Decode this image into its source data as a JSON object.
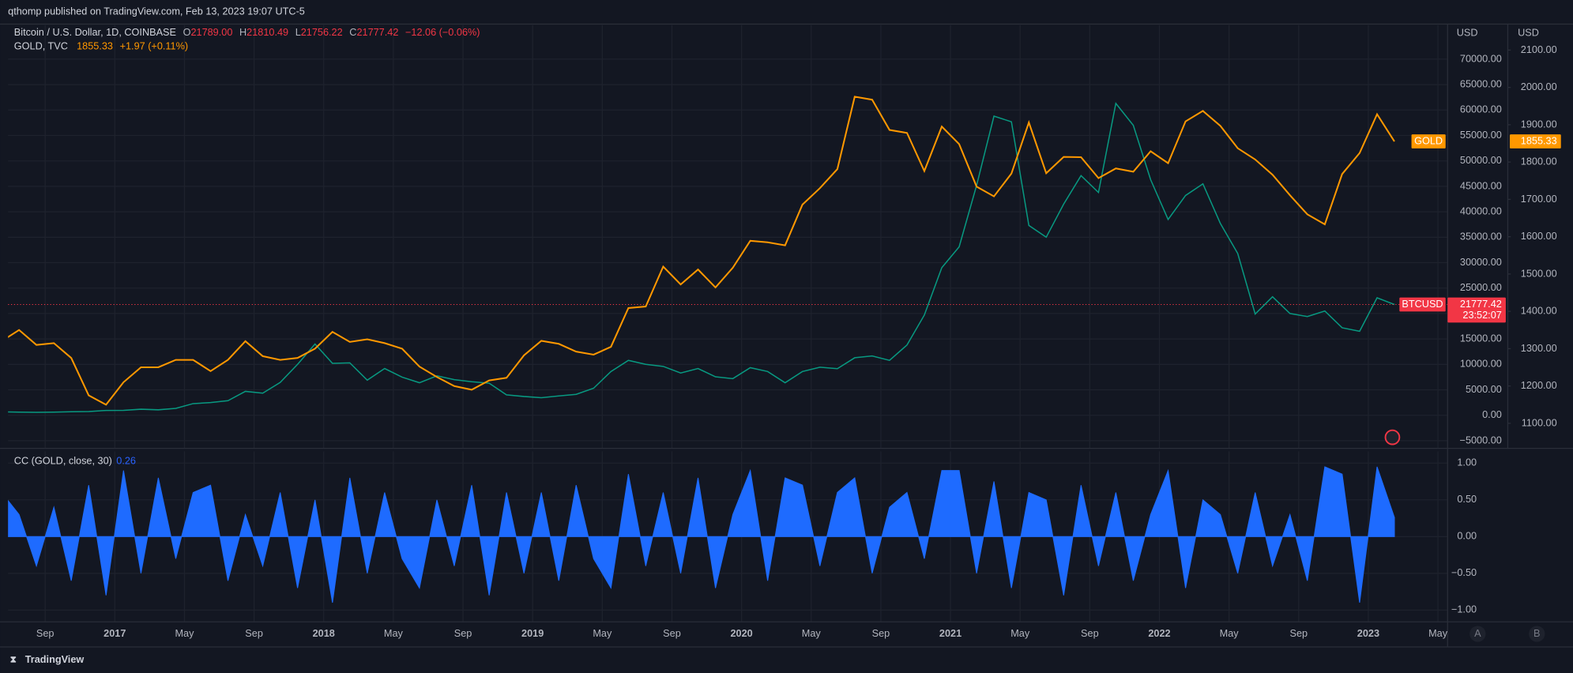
{
  "header": {
    "text": "qthomp published on TradingView.com, Feb 13, 2023 19:07 UTC-5"
  },
  "footer": {
    "brand": "TradingView"
  },
  "axis_buttons": [
    "A",
    "B"
  ],
  "chart_data": [
    {
      "type": "line",
      "legend": {
        "label": "Bitcoin / U.S. Dollar, 1D, COINBASE",
        "ohlc": [
          {
            "key": "O",
            "value": "21789.00"
          },
          {
            "key": "H",
            "value": "21810.49"
          },
          {
            "key": "L",
            "value": "21756.22"
          },
          {
            "key": "C",
            "value": "21777.42"
          }
        ],
        "change": "−12.06 (−0.06%)"
      },
      "gold_legend": {
        "label": "GOLD, TVC",
        "last": "1855.33",
        "change": "+1.97 (+0.11%)"
      },
      "countdown": "23:52:07",
      "y_unit": "USD",
      "y2_unit": "USD",
      "grid": true,
      "x": [
        "2016-06",
        "2016-07",
        "2016-08",
        "2016-09",
        "2016-10",
        "2016-11",
        "2016-12",
        "2017-01",
        "2017-02",
        "2017-03",
        "2017-04",
        "2017-05",
        "2017-06",
        "2017-07",
        "2017-08",
        "2017-09",
        "2017-10",
        "2017-11",
        "2017-12",
        "2018-01",
        "2018-02",
        "2018-03",
        "2018-04",
        "2018-05",
        "2018-06",
        "2018-07",
        "2018-08",
        "2018-09",
        "2018-10",
        "2018-11",
        "2018-12",
        "2019-01",
        "2019-02",
        "2019-03",
        "2019-04",
        "2019-05",
        "2019-06",
        "2019-07",
        "2019-08",
        "2019-09",
        "2019-10",
        "2019-11",
        "2019-12",
        "2020-01",
        "2020-02",
        "2020-03",
        "2020-04",
        "2020-05",
        "2020-06",
        "2020-07",
        "2020-08",
        "2020-09",
        "2020-10",
        "2020-11",
        "2020-12",
        "2021-01",
        "2021-02",
        "2021-03",
        "2021-04",
        "2021-05",
        "2021-06",
        "2021-07",
        "2021-08",
        "2021-09",
        "2021-10",
        "2021-11",
        "2021-12",
        "2022-01",
        "2022-02",
        "2022-03",
        "2022-04",
        "2022-05",
        "2022-06",
        "2022-07",
        "2022-08",
        "2022-09",
        "2022-10",
        "2022-11",
        "2022-12",
        "2023-01",
        "2023-02"
      ],
      "series": [
        {
          "name": "BTCUSD",
          "color": "#089981",
          "values": [
            670,
            620,
            575,
            610,
            700,
            740,
            960,
            970,
            1190,
            1080,
            1350,
            2300,
            2500,
            2870,
            4700,
            4340,
            6450,
            10000,
            14000,
            10200,
            10300,
            6900,
            9200,
            7500,
            6400,
            7750,
            7000,
            6600,
            6300,
            4000,
            3700,
            3450,
            3800,
            4100,
            5300,
            8600,
            10800,
            10000,
            9600,
            8300,
            9200,
            7550,
            7200,
            9350,
            8600,
            6400,
            8600,
            9450,
            9150,
            11300,
            11650,
            10800,
            13800,
            19700,
            29000,
            33100,
            45200,
            58800,
            57700,
            37300,
            35000,
            41500,
            47100,
            43800,
            61300,
            57000,
            46300,
            38500,
            43200,
            45500,
            37700,
            31800,
            19900,
            23300,
            20000,
            19400,
            20500,
            17200,
            16500,
            23100,
            21777.42
          ]
        },
        {
          "name": "GOLD",
          "color": "#ff9800",
          "axis": "y2",
          "values": [
            1320,
            1350,
            1310,
            1315,
            1275,
            1175,
            1150,
            1210,
            1250,
            1250,
            1270,
            1270,
            1240,
            1270,
            1320,
            1280,
            1270,
            1275,
            1300,
            1345,
            1318,
            1325,
            1315,
            1300,
            1252,
            1224,
            1200,
            1190,
            1215,
            1222,
            1282,
            1321,
            1313,
            1292,
            1284,
            1305,
            1409,
            1413,
            1520,
            1472,
            1512,
            1464,
            1517,
            1589,
            1585,
            1577,
            1686,
            1730,
            1781,
            1975,
            1967,
            1886,
            1878,
            1776,
            1895,
            1848,
            1734,
            1708,
            1769,
            1906,
            1770,
            1814,
            1813,
            1757,
            1783,
            1774,
            1829,
            1797,
            1909,
            1937,
            1897,
            1837,
            1807,
            1766,
            1711,
            1660,
            1633,
            1768,
            1824,
            1928,
            1855.33
          ]
        }
      ],
      "ylim": [
        -6500,
        76700
      ],
      "yticks": [
        {
          "value": -5000,
          "label": "−5000.00"
        },
        {
          "value": 0,
          "label": "0.00"
        },
        {
          "value": 5000,
          "label": "5000.00"
        },
        {
          "value": 10000,
          "label": "10000.00"
        },
        {
          "value": 15000,
          "label": "15000.00"
        },
        {
          "value": 20000,
          "label": "20000.00"
        },
        {
          "value": 25000,
          "label": "25000.00"
        },
        {
          "value": 30000,
          "label": "30000.00"
        },
        {
          "value": 35000,
          "label": "35000.00"
        },
        {
          "value": 40000,
          "label": "40000.00"
        },
        {
          "value": 45000,
          "label": "45000.00"
        },
        {
          "value": 50000,
          "label": "50000.00"
        },
        {
          "value": 55000,
          "label": "55000.00"
        },
        {
          "value": 60000,
          "label": "60000.00"
        },
        {
          "value": 65000,
          "label": "65000.00"
        },
        {
          "value": 70000,
          "label": "70000.00"
        }
      ],
      "y2lim": [
        1033,
        2167
      ],
      "y2ticks": [
        {
          "value": 1100,
          "label": "1100.00"
        },
        {
          "value": 1200,
          "label": "1200.00"
        },
        {
          "value": 1300,
          "label": "1300.00"
        },
        {
          "value": 1400,
          "label": "1400.00"
        },
        {
          "value": 1500,
          "label": "1500.00"
        },
        {
          "value": 1600,
          "label": "1600.00"
        },
        {
          "value": 1700,
          "label": "1700.00"
        },
        {
          "value": 1800,
          "label": "1800.00"
        },
        {
          "value": 1900,
          "label": "1900.00"
        },
        {
          "value": 2000,
          "label": "2000.00"
        },
        {
          "value": 2100,
          "label": "2100.00"
        }
      ]
    },
    {
      "type": "area",
      "title": "CC (GOLD, close, 30)",
      "grid": true,
      "x": [
        "2016-06",
        "2016-07",
        "2016-08",
        "2016-09",
        "2016-10",
        "2016-11",
        "2016-12",
        "2017-01",
        "2017-02",
        "2017-03",
        "2017-04",
        "2017-05",
        "2017-06",
        "2017-07",
        "2017-08",
        "2017-09",
        "2017-10",
        "2017-11",
        "2017-12",
        "2018-01",
        "2018-02",
        "2018-03",
        "2018-04",
        "2018-05",
        "2018-06",
        "2018-07",
        "2018-08",
        "2018-09",
        "2018-10",
        "2018-11",
        "2018-12",
        "2019-01",
        "2019-02",
        "2019-03",
        "2019-04",
        "2019-05",
        "2019-06",
        "2019-07",
        "2019-08",
        "2019-09",
        "2019-10",
        "2019-11",
        "2019-12",
        "2020-01",
        "2020-02",
        "2020-03",
        "2020-04",
        "2020-05",
        "2020-06",
        "2020-07",
        "2020-08",
        "2020-09",
        "2020-10",
        "2020-11",
        "2020-12",
        "2021-01",
        "2021-02",
        "2021-03",
        "2021-04",
        "2021-05",
        "2021-06",
        "2021-07",
        "2021-08",
        "2021-09",
        "2021-10",
        "2021-11",
        "2021-12",
        "2022-01",
        "2022-02",
        "2022-03",
        "2022-04",
        "2022-05",
        "2022-06",
        "2022-07",
        "2022-08",
        "2022-09",
        "2022-10",
        "2022-11",
        "2022-12",
        "2023-01",
        "2023-02"
      ],
      "series": [
        {
          "name": "CC",
          "color": "#1e6bff",
          "values": [
            0.6,
            0.3,
            -0.4,
            0.4,
            -0.6,
            0.7,
            -0.8,
            0.9,
            -0.5,
            0.8,
            -0.3,
            0.6,
            0.7,
            -0.6,
            0.3,
            -0.4,
            0.6,
            -0.7,
            0.5,
            -0.9,
            0.8,
            -0.5,
            0.6,
            -0.3,
            -0.7,
            0.5,
            -0.4,
            0.7,
            -0.8,
            0.6,
            -0.5,
            0.6,
            -0.6,
            0.7,
            -0.3,
            -0.7,
            0.85,
            -0.4,
            0.6,
            -0.5,
            0.8,
            -0.7,
            0.3,
            0.9,
            -0.6,
            0.8,
            0.7,
            -0.4,
            0.6,
            0.8,
            -0.5,
            0.4,
            0.6,
            -0.3,
            0.9,
            0.9,
            -0.5,
            0.75,
            -0.7,
            0.6,
            0.5,
            -0.8,
            0.7,
            -0.4,
            0.6,
            -0.6,
            0.3,
            0.9,
            -0.7,
            0.5,
            0.3,
            -0.5,
            0.6,
            -0.4,
            0.3,
            -0.6,
            0.95,
            0.85,
            -0.9,
            0.95,
            0.26
          ]
        }
      ],
      "ylim": [
        -1.16,
        1.16
      ],
      "yticks": [
        {
          "value": -1,
          "label": "−1.00"
        },
        {
          "value": -0.5,
          "label": "−0.50"
        },
        {
          "value": 0,
          "label": "0.00"
        },
        {
          "value": 0.5,
          "label": "0.50"
        },
        {
          "value": 1,
          "label": "1.00"
        }
      ],
      "xticks": [
        {
          "value": "2016-09",
          "label": "Sep"
        },
        {
          "value": "2017-01",
          "label": "2017"
        },
        {
          "value": "2017-05",
          "label": "May"
        },
        {
          "value": "2017-09",
          "label": "Sep"
        },
        {
          "value": "2018-01",
          "label": "2018"
        },
        {
          "value": "2018-05",
          "label": "May"
        },
        {
          "value": "2018-09",
          "label": "Sep"
        },
        {
          "value": "2019-01",
          "label": "2019"
        },
        {
          "value": "2019-05",
          "label": "May"
        },
        {
          "value": "2019-09",
          "label": "Sep"
        },
        {
          "value": "2020-01",
          "label": "2020"
        },
        {
          "value": "2020-05",
          "label": "May"
        },
        {
          "value": "2020-09",
          "label": "Sep"
        },
        {
          "value": "2021-01",
          "label": "2021"
        },
        {
          "value": "2021-05",
          "label": "May"
        },
        {
          "value": "2021-09",
          "label": "Sep"
        },
        {
          "value": "2022-01",
          "label": "2022"
        },
        {
          "value": "2022-05",
          "label": "May"
        },
        {
          "value": "2022-09",
          "label": "Sep"
        },
        {
          "value": "2023-01",
          "label": "2023"
        },
        {
          "value": "2023-05",
          "label": "May"
        }
      ]
    }
  ]
}
